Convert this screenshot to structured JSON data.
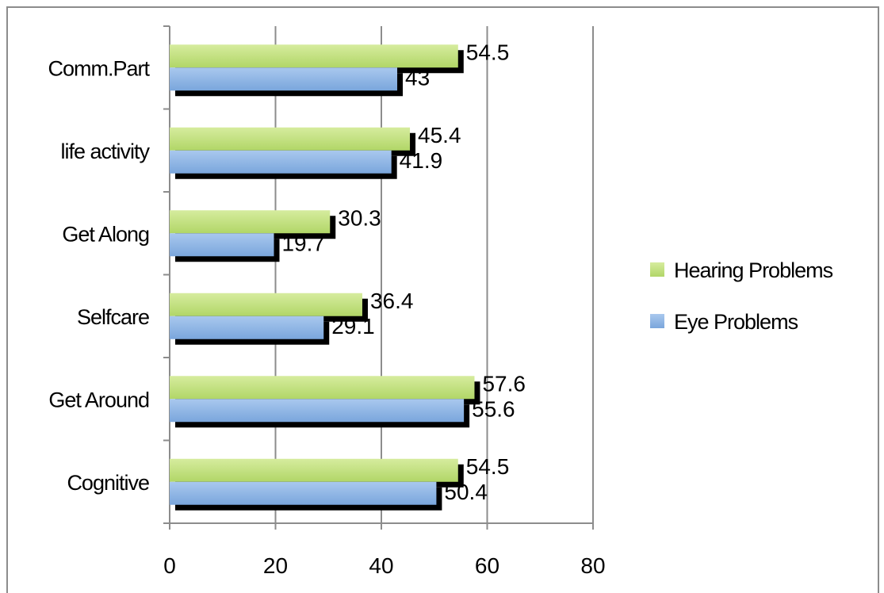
{
  "chart_data": {
    "type": "bar",
    "orientation": "horizontal",
    "categories": [
      "Cognitive",
      "Get Around",
      "Selfcare",
      "Get Along",
      "life activity",
      "Comm.Part"
    ],
    "series": [
      {
        "name": "Eye Problems",
        "values": [
          50.4,
          55.6,
          29.1,
          19.7,
          41.9,
          43
        ]
      },
      {
        "name": "Hearing Problems",
        "values": [
          54.5,
          57.6,
          36.4,
          30.3,
          45.4,
          54.5
        ]
      }
    ],
    "xlim": [
      0,
      80
    ],
    "xticks": [
      "0",
      "20",
      "40",
      "60",
      "80"
    ],
    "grid": true,
    "legend": "right",
    "colors": {
      "Eye Problems": "#8db3e2",
      "Hearing Problems": "#c3e07f",
      "shadow": "#000000",
      "grid": "#8c8c8c"
    }
  }
}
